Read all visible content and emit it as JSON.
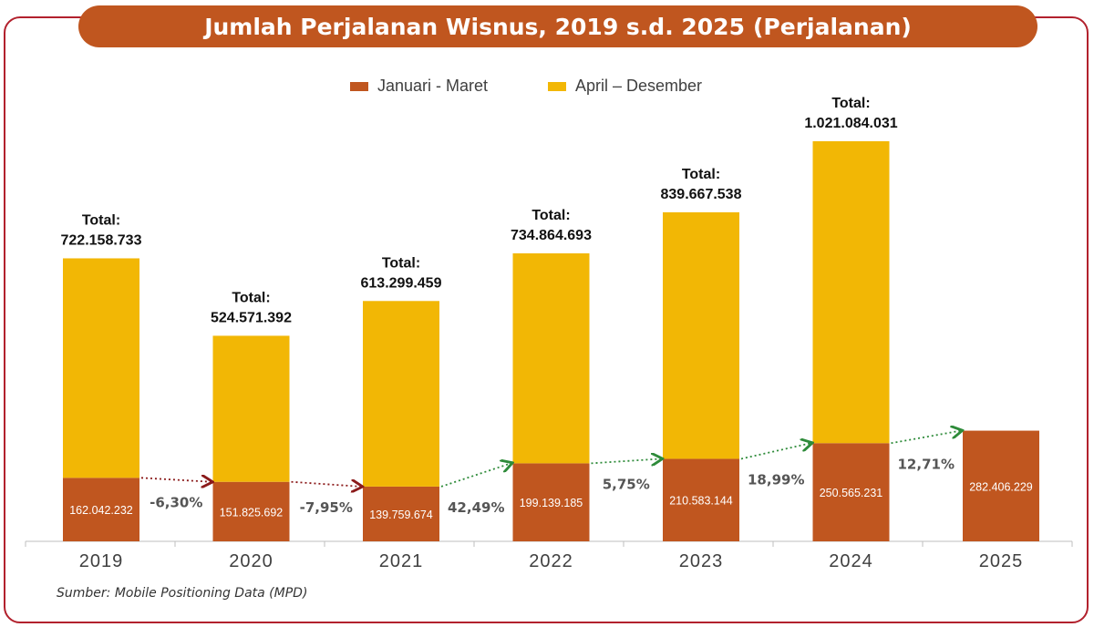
{
  "header": {
    "title": "Jumlah Perjalanan Wisnus, 2019 s.d. 2025",
    "unit": "(Perjalanan)"
  },
  "legend": [
    {
      "label": "Januari - Maret",
      "color": "#c0561f"
    },
    {
      "label": "April – Desember",
      "color": "#f2b705"
    }
  ],
  "source": "Sumber: Mobile Positioning Data (MPD)",
  "colors": {
    "accent": "#c0561f",
    "highlight": "#ffff00",
    "frame": "#b2212d",
    "axis": "#bfbfbf",
    "arrow_down": "#8b1a1a",
    "arrow_up": "#2e8b3a"
  },
  "chart_data": {
    "type": "bar",
    "stacked": true,
    "title": "Jumlah Perjalanan Wisnus, 2019 s.d. 2025 (Perjalanan)",
    "categories": [
      "2019",
      "2020",
      "2021",
      "2022",
      "2023",
      "2024",
      "2025"
    ],
    "series": [
      {
        "name": "Januari - Maret",
        "values": [
          162042232,
          151825692,
          139759674,
          199139185,
          210583144,
          250565231,
          282406229
        ],
        "labels": [
          "162.042.232",
          "151.825.692",
          "139.759.674",
          "199.139.185",
          "210.583.144",
          "250.565.231",
          "282.406.229"
        ]
      },
      {
        "name": "April – Desember",
        "values": [
          560116501,
          372745700,
          473539785,
          535725508,
          629084394,
          770518800,
          null
        ]
      }
    ],
    "total_prefix": "Total:",
    "totals": [
      722158733,
      524571392,
      613299459,
      734864693,
      839667538,
      1021084031,
      null
    ],
    "total_labels": [
      "722.158.733",
      "524.571.392",
      "613.299.459",
      "734.864.693",
      "839.667.538",
      "1.021.084.031",
      null
    ],
    "growth": [
      {
        "from": "2019",
        "to": "2020",
        "label": "-6,30%",
        "direction": "down"
      },
      {
        "from": "2020",
        "to": "2021",
        "label": "-7,95%",
        "direction": "down"
      },
      {
        "from": "2021",
        "to": "2022",
        "label": "42,49%",
        "direction": "up"
      },
      {
        "from": "2022",
        "to": "2023",
        "label": "5,75%",
        "direction": "up"
      },
      {
        "from": "2023",
        "to": "2024",
        "label": "18,99%",
        "direction": "up"
      },
      {
        "from": "2024",
        "to": "2025",
        "label": "12,71%",
        "direction": "up"
      }
    ],
    "xlabel": "",
    "ylabel": "",
    "ylim": [
      0,
      1100000000
    ],
    "grid": false,
    "legend_position": "top-center"
  }
}
